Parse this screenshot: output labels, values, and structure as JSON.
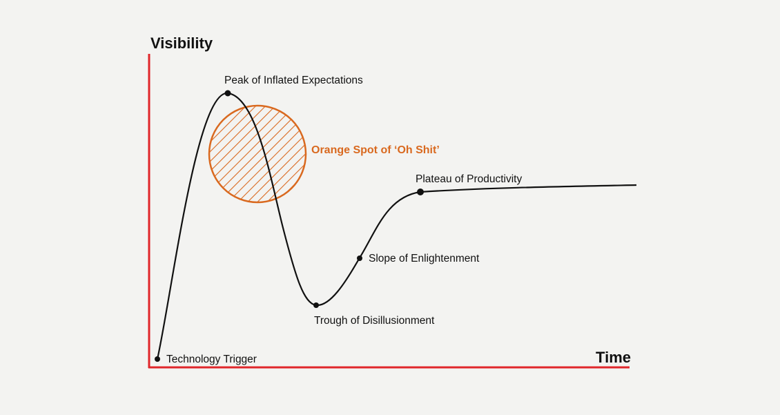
{
  "axes": {
    "y_title": "Visibility",
    "x_title": "Time",
    "axis_color": "#e0262a"
  },
  "curve_color": "#111111",
  "phases": {
    "technology_trigger": "Technology Trigger",
    "peak": "Peak of Inflated Expectations",
    "trough": "Trough of Disillusionment",
    "slope": "Slope of Enlightenment",
    "plateau": "Plateau of Productivity"
  },
  "highlight": {
    "label": "Orange Spot of ‘Oh Shit’",
    "color": "#d9691f"
  }
}
